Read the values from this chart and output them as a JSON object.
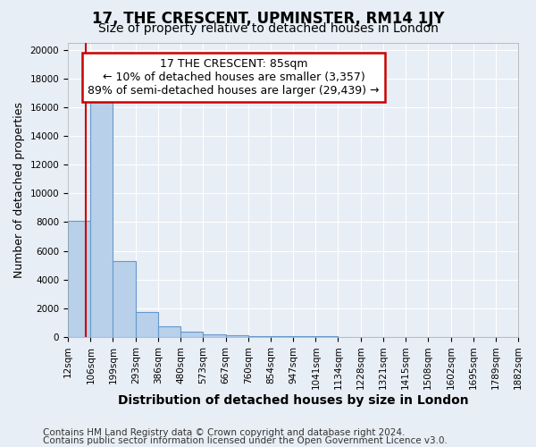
{
  "title": "17, THE CRESCENT, UPMINSTER, RM14 1JY",
  "subtitle": "Size of property relative to detached houses in London",
  "xlabel": "Distribution of detached houses by size in London",
  "ylabel": "Number of detached properties",
  "footnote1": "Contains HM Land Registry data © Crown copyright and database right 2024.",
  "footnote2": "Contains public sector information licensed under the Open Government Licence v3.0.",
  "bar_edges": [
    12,
    106,
    199,
    293,
    386,
    480,
    573,
    667,
    760,
    854,
    947,
    1041,
    1134,
    1228,
    1321,
    1415,
    1508,
    1602,
    1695,
    1789,
    1882
  ],
  "bar_heights": [
    8100,
    16700,
    5300,
    1750,
    750,
    350,
    200,
    120,
    80,
    60,
    45,
    35,
    25,
    20,
    15,
    12,
    10,
    8,
    7,
    6,
    0
  ],
  "bar_color": "#b8d0ea",
  "bar_edge_color": "#6699cc",
  "property_size": 85,
  "property_line_color": "#cc0000",
  "annotation_line1": "17 THE CRESCENT: 85sqm",
  "annotation_line2": "← 10% of detached houses are smaller (3,357)",
  "annotation_line3": "89% of semi-detached houses are larger (29,439) →",
  "annotation_box_color": "#ffffff",
  "annotation_box_edge": "#cc0000",
  "ylim": [
    0,
    20500
  ],
  "yticks": [
    0,
    2000,
    4000,
    6000,
    8000,
    10000,
    12000,
    14000,
    16000,
    18000,
    20000
  ],
  "tick_labels": [
    "12sqm",
    "106sqm",
    "199sqm",
    "293sqm",
    "386sqm",
    "480sqm",
    "573sqm",
    "667sqm",
    "760sqm",
    "854sqm",
    "947sqm",
    "1041sqm",
    "1134sqm",
    "1228sqm",
    "1321sqm",
    "1415sqm",
    "1508sqm",
    "1602sqm",
    "1695sqm",
    "1789sqm",
    "1882sqm"
  ],
  "background_color": "#e8eef5",
  "grid_color": "#ffffff",
  "title_fontsize": 12,
  "subtitle_fontsize": 10,
  "ylabel_fontsize": 9,
  "xlabel_fontsize": 10,
  "tick_fontsize": 7.5,
  "annotation_fontsize": 9,
  "footnote_fontsize": 7.5
}
